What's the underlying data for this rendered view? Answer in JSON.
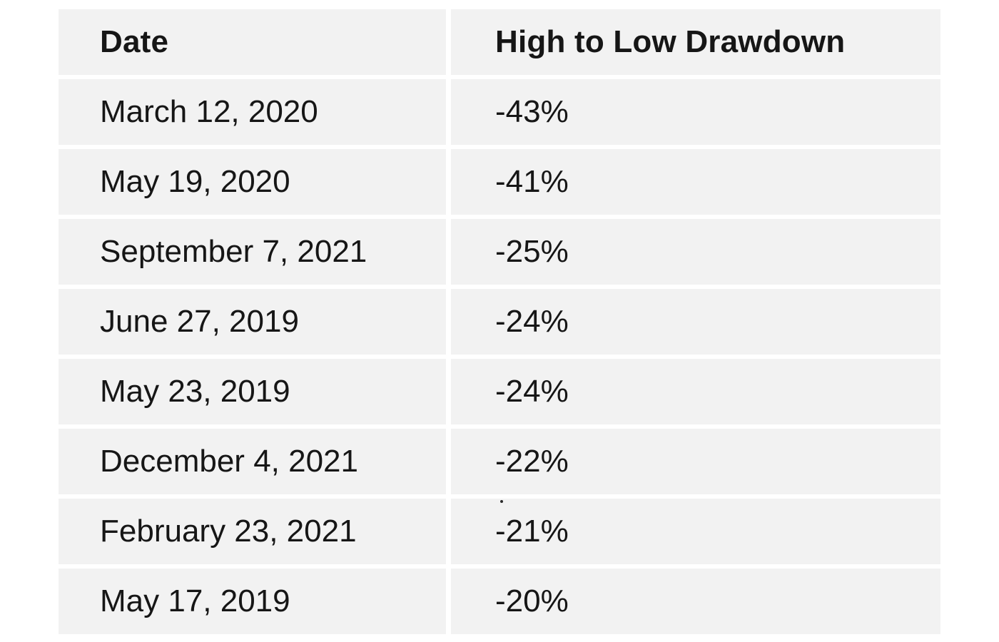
{
  "chart_data": {
    "type": "table",
    "title": "",
    "columns": [
      "Date",
      "High to Low Drawdown"
    ],
    "rows": [
      {
        "date": "March 12, 2020",
        "drawdown_pct": -43,
        "drawdown_label": "-43%"
      },
      {
        "date": "May 19, 2020",
        "drawdown_pct": -41,
        "drawdown_label": "-41%"
      },
      {
        "date": "September 7, 2021",
        "drawdown_pct": -25,
        "drawdown_label": "-25%"
      },
      {
        "date": "June 27, 2019",
        "drawdown_pct": -24,
        "drawdown_label": "-24%"
      },
      {
        "date": "May 23, 2019",
        "drawdown_pct": -24,
        "drawdown_label": "-24%"
      },
      {
        "date": "December 4, 2021",
        "drawdown_pct": -22,
        "drawdown_label": "-22%"
      },
      {
        "date": "February 23, 2021",
        "drawdown_pct": -21,
        "drawdown_label": "-21%"
      },
      {
        "date": "May 17, 2019",
        "drawdown_pct": -20,
        "drawdown_label": "-20%"
      }
    ],
    "layout": {
      "legend": "none",
      "grid": "off",
      "cell_background": "#f2f2f2",
      "gutter_color": "#ffffff",
      "text_color": "#161616"
    }
  }
}
